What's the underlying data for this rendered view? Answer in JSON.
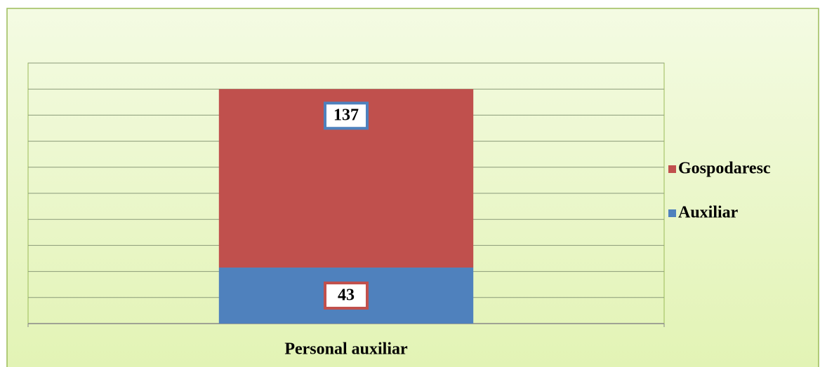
{
  "chart_data": {
    "type": "stacked_bar",
    "categories": [
      "Personal auxiliar"
    ],
    "series": [
      {
        "name": "Auxiliar",
        "color": "#4f81bd",
        "values": [
          43
        ]
      },
      {
        "name": "Gospodaresc",
        "color": "#c0504d",
        "values": [
          137
        ]
      }
    ],
    "ylim": [
      0,
      200
    ],
    "yticks": [
      0,
      20,
      40,
      60,
      80,
      100,
      120,
      140,
      160,
      180,
      200
    ],
    "grid": true,
    "legend": "right"
  }
}
